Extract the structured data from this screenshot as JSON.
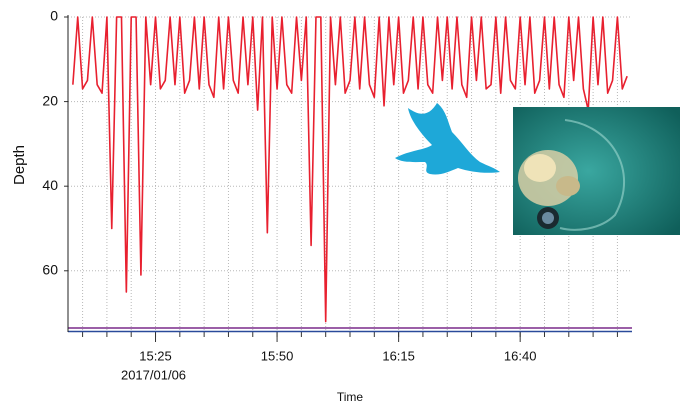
{
  "chart_data": {
    "type": "line",
    "y_label": "Depth",
    "x_label": "Time",
    "date_label": "2017/01/06",
    "color": "#e8202f",
    "y_inverted": true,
    "grid": true,
    "ylim": [
      0,
      74
    ],
    "yticks": [
      0,
      20,
      40,
      60
    ],
    "xlim": [
      "15:07",
      "17:03"
    ],
    "xticks": [
      "15:25",
      "15:50",
      "16:15",
      "16:40"
    ],
    "xminor_ticks": [
      "15:10",
      "15:15",
      "15:20",
      "15:25",
      "15:30",
      "15:35",
      "15:40",
      "15:45",
      "15:50",
      "15:55",
      "16:00",
      "16:05",
      "16:10",
      "16:15",
      "16:20",
      "16:25",
      "16:30",
      "16:35",
      "16:40",
      "16:45",
      "16:50",
      "16:55",
      "17:00"
    ],
    "x": [
      "15:08",
      "15:09",
      "15:10",
      "15:11",
      "15:12",
      "15:13",
      "15:14",
      "15:15",
      "15:16",
      "15:17",
      "15:18",
      "15:19",
      "15:20",
      "15:21",
      "15:22",
      "15:23",
      "15:24",
      "15:25",
      "15:26",
      "15:27",
      "15:28",
      "15:29",
      "15:30",
      "15:31",
      "15:32",
      "15:33",
      "15:34",
      "15:35",
      "15:36",
      "15:37",
      "15:38",
      "15:39",
      "15:40",
      "15:41",
      "15:42",
      "15:43",
      "15:44",
      "15:45",
      "15:46",
      "15:47",
      "15:48",
      "15:49",
      "15:50",
      "15:51",
      "15:52",
      "15:53",
      "15:54",
      "15:55",
      "15:56",
      "15:57",
      "15:58",
      "15:59",
      "16:00",
      "16:01",
      "16:02",
      "16:03",
      "16:04",
      "16:05",
      "16:06",
      "16:07",
      "16:08",
      "16:09",
      "16:10",
      "16:11",
      "16:12",
      "16:13",
      "16:14",
      "16:15",
      "16:16",
      "16:17",
      "16:18",
      "16:19",
      "16:20",
      "16:21",
      "16:22",
      "16:23",
      "16:24",
      "16:25",
      "16:26",
      "16:27",
      "16:28",
      "16:29",
      "16:30",
      "16:31",
      "16:32",
      "16:33",
      "16:34",
      "16:35",
      "16:36",
      "16:37",
      "16:38",
      "16:39",
      "16:40",
      "16:41",
      "16:42",
      "16:43",
      "16:44",
      "16:45",
      "16:46",
      "16:47",
      "16:48",
      "16:49",
      "16:50",
      "16:51",
      "16:52",
      "16:53",
      "16:54",
      "16:55",
      "16:56",
      "16:57",
      "16:58",
      "16:59",
      "17:00",
      "17:01",
      "17:02"
    ],
    "values": [
      16,
      0,
      17,
      15,
      0,
      16,
      18,
      0,
      50,
      0,
      0,
      65,
      0,
      0,
      61,
      0,
      16,
      0,
      17,
      15,
      0,
      16,
      0,
      18,
      15,
      0,
      17,
      0,
      16,
      19,
      0,
      17,
      0,
      15,
      18,
      0,
      16,
      0,
      22,
      0,
      51,
      0,
      17,
      0,
      16,
      18,
      0,
      15,
      0,
      54,
      0,
      0,
      72,
      0,
      16,
      0,
      18,
      15,
      0,
      17,
      0,
      16,
      19,
      0,
      21,
      0,
      16,
      0,
      18,
      15,
      0,
      17,
      0,
      16,
      18,
      0,
      15,
      0,
      17,
      0,
      16,
      19,
      0,
      15,
      0,
      17,
      16,
      0,
      18,
      0,
      15,
      17,
      0,
      16,
      0,
      18,
      15,
      0,
      17,
      0,
      16,
      19,
      0,
      15,
      0,
      17,
      22,
      0,
      16,
      0,
      18,
      15,
      0,
      17,
      14
    ]
  }
}
